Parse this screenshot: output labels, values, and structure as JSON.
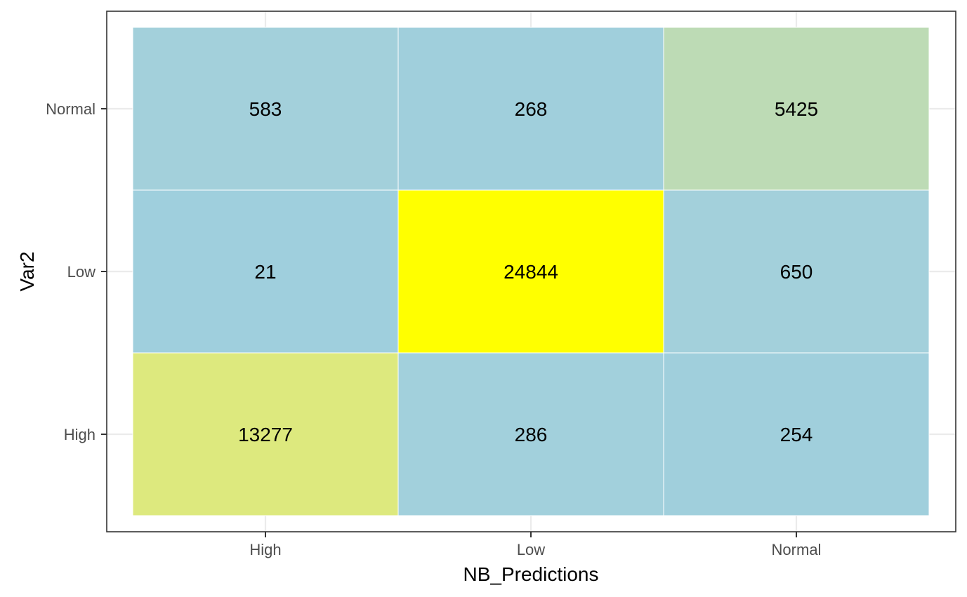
{
  "chart_data": {
    "type": "heatmap",
    "xlabel": "NB_Predictions",
    "ylabel": "Var2",
    "x_categories": [
      "High",
      "Low",
      "Normal"
    ],
    "y_categories": [
      "High",
      "Low",
      "Normal"
    ],
    "cells": [
      {
        "x": "High",
        "y": "Normal",
        "value": 583,
        "color": "#a3d0db"
      },
      {
        "x": "Low",
        "y": "Normal",
        "value": 268,
        "color": "#a0cfdc"
      },
      {
        "x": "Normal",
        "y": "Normal",
        "value": 5425,
        "color": "#bddbb5"
      },
      {
        "x": "High",
        "y": "Low",
        "value": 21,
        "color": "#9fcfdd"
      },
      {
        "x": "Low",
        "y": "Low",
        "value": 24844,
        "color": "#ffff00"
      },
      {
        "x": "Normal",
        "y": "Low",
        "value": 650,
        "color": "#a3d0db"
      },
      {
        "x": "High",
        "y": "High",
        "value": 13277,
        "color": "#dde97e"
      },
      {
        "x": "Low",
        "y": "High",
        "value": 286,
        "color": "#a2d0dc"
      },
      {
        "x": "Normal",
        "y": "High",
        "value": 254,
        "color": "#a0cfdc"
      }
    ],
    "grid": true,
    "legend": "none",
    "colors": {
      "background": "#ffffff",
      "grid": "#ebebeb",
      "panel_border": "#333333",
      "tick_text": "#4d4d4d",
      "tick_mark": "#333333",
      "cell_border": "#ffffff",
      "label_text": "#000000"
    }
  }
}
